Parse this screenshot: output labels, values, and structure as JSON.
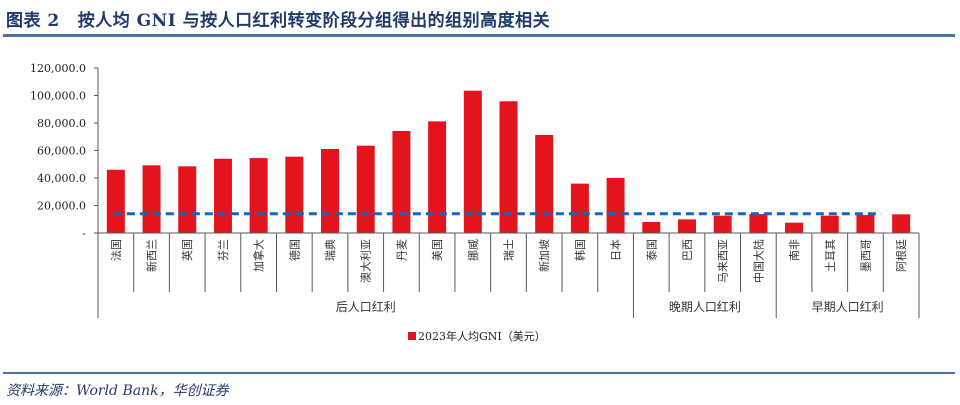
{
  "header": {
    "figure_label": "图表 2",
    "title": "按人均 GNI 与按人口红利转变阶段分组得出的组别高度相关"
  },
  "footer": {
    "source": "资料来源：World Bank，华创证券"
  },
  "colors": {
    "bar": "#e3141c",
    "reference_line": "#1565c0",
    "title": "#1f3a6b",
    "rule": "#4a72a0",
    "axis": "#595959"
  },
  "chart_data": {
    "type": "bar",
    "title": "",
    "xlabel": "",
    "ylabel": "",
    "ylim": [
      0,
      120000
    ],
    "yticks": [
      0,
      20000,
      40000,
      60000,
      80000,
      100000,
      120000
    ],
    "ytick_labels": [
      "-",
      "20,000.0",
      "40,000.0",
      "60,000.0",
      "80,000.0",
      "100,000.0",
      "120,000.0"
    ],
    "categories": [
      "法国",
      "新西兰",
      "英国",
      "芬兰",
      "加拿大",
      "德国",
      "瑞典",
      "澳大利亚",
      "丹麦",
      "美国",
      "挪威",
      "瑞士",
      "新加坡",
      "韩国",
      "日本",
      "泰国",
      "巴西",
      "马来西亚",
      "中国大陆",
      "南非",
      "土耳其",
      "墨西哥",
      "阿根廷"
    ],
    "groups": [
      {
        "label": "后人口红利",
        "start": 0,
        "count": 15
      },
      {
        "label": "晚期人口红利",
        "start": 15,
        "count": 4
      },
      {
        "label": "早期人口红利",
        "start": 19,
        "count": 4
      }
    ],
    "series": [
      {
        "name": "2023年人均GNI（美元）",
        "values": [
          46000,
          49200,
          48500,
          54000,
          54500,
          55500,
          61100,
          63500,
          74200,
          81200,
          103500,
          95800,
          71300,
          35900,
          40000,
          8000,
          9900,
          12600,
          13800,
          7500,
          12600,
          13100,
          13600
        ]
      }
    ],
    "reference_line": {
      "value": 14000,
      "style": "dashed",
      "from_category": 0,
      "to_category": 22
    },
    "legend": {
      "position": "bottom",
      "entries": [
        "2023年人均GNI（美元）"
      ]
    },
    "grid": false
  }
}
